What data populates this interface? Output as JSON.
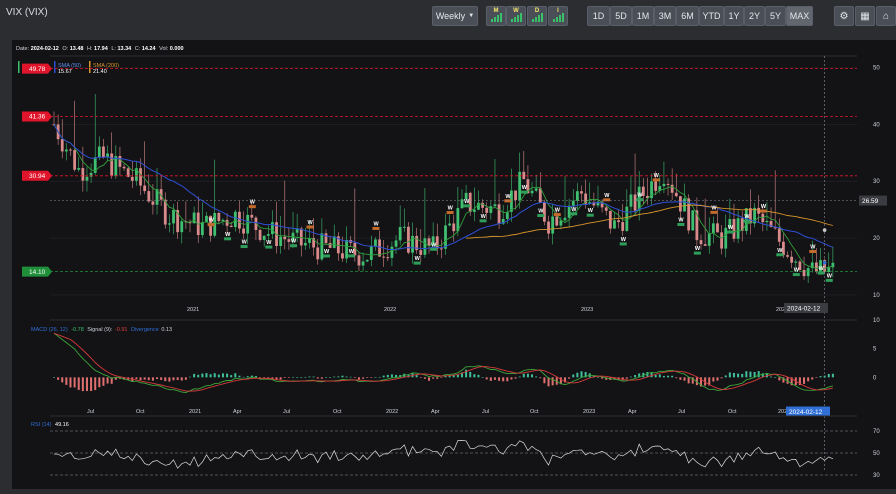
{
  "header": {
    "title": "VIX (VIX)",
    "interval_label": "Weekly",
    "chart_types": [
      "M",
      "W",
      "D",
      "I"
    ],
    "ranges": [
      "1D",
      "5D",
      "1M",
      "3M",
      "6M",
      "YTD",
      "1Y",
      "2Y",
      "5Y",
      "MAX"
    ],
    "active_range": "MAX",
    "settings_icon": "gears-icon",
    "calculator_icon": "calculator-icon",
    "bank_icon": "bank-icon"
  },
  "ohlc": {
    "date_label": "Date:",
    "date": "2024-02-12",
    "open_label": "O:",
    "open": "13.48",
    "high_label": "H:",
    "high": "17.94",
    "low_label": "L:",
    "low": "13.34",
    "close_label": "C:",
    "close": "14.24",
    "vol_label": "Vol:",
    "vol": "0.000"
  },
  "legend": {
    "vix_value": "14.24",
    "sma50_label": "SMA (50)",
    "sma50_value": "15.67",
    "sma200_label": "SMA (200)",
    "sma200_value": "21.40"
  },
  "colors": {
    "up": "#3fbf70",
    "down": "#d98a8a",
    "sma50": "#2f9e3a",
    "sma200": "#d9962a",
    "ema": "#2f4fd6",
    "macd": "#3aa63a",
    "signal": "#d43a3a",
    "rsi": "#dcdcdc",
    "level_red": "#e0142a",
    "level_green": "#1f8f3a"
  },
  "chart_data": [
    {
      "type": "candlestick",
      "title": "VIX (VIX)",
      "interval": "Weekly",
      "ylim": [
        7,
        52
      ],
      "y_ticks": [
        10,
        20,
        30,
        40,
        50
      ],
      "x_ticks": [
        "2021",
        "2022",
        "2023",
        "2024"
      ],
      "crosshair_date": "2024-02-12",
      "last_value_label": "26.59",
      "levels": [
        {
          "value": 49.78,
          "label": "49.78",
          "color": "red"
        },
        {
          "value": 41.36,
          "label": "41.36",
          "color": "red"
        },
        {
          "value": 30.94,
          "label": "30.94",
          "color": "red"
        },
        {
          "value": 14.1,
          "label": "14.10",
          "color": "green"
        }
      ],
      "series": [
        {
          "name": "SMA (50)",
          "last": 15.67
        },
        {
          "name": "SMA (200)",
          "last": 21.4
        }
      ],
      "markers": [
        "W",
        "W",
        "W",
        "W",
        "W",
        "W",
        "W",
        "W",
        "W",
        "W",
        "W",
        "W",
        "W",
        "W",
        "W",
        "W",
        "W",
        "W",
        "W",
        "W",
        "W",
        "W",
        "W",
        "W",
        "W",
        "W",
        "W",
        "W",
        "W",
        "W",
        "W",
        "W",
        "W",
        "W",
        "W",
        "W"
      ]
    },
    {
      "type": "line",
      "title": "MACD (26, 12)",
      "series": [
        {
          "name": "MACD",
          "last": -0.78
        },
        {
          "name": "Signal (9)",
          "last": -0.91
        },
        {
          "name": "Divergence",
          "last": 0.13
        }
      ],
      "values_text": {
        "macd": "-0.78",
        "signal_label": "Signal (9):",
        "signal": "-0.91",
        "div_label": "Divergence",
        "div": "0.13"
      },
      "ylim": [
        -5,
        10
      ],
      "y_ticks": [
        10,
        5,
        0
      ],
      "x_ticks": [
        "Jul",
        "Oct",
        "2021",
        "Apr",
        "Jul",
        "Oct",
        "2022",
        "Apr",
        "Jul",
        "Oct",
        "2023",
        "Apr",
        "Jul",
        "Oct",
        "2024"
      ],
      "crosshair_date": "2024-02-12"
    },
    {
      "type": "line",
      "title": "RSI (14)",
      "series": [
        {
          "name": "RSI (14)",
          "last": 49.16
        }
      ],
      "value_text": "49.16",
      "ylim": [
        20,
        80
      ],
      "y_ticks": [
        70,
        50,
        30
      ],
      "reference_lines": [
        70,
        50,
        30
      ]
    }
  ]
}
